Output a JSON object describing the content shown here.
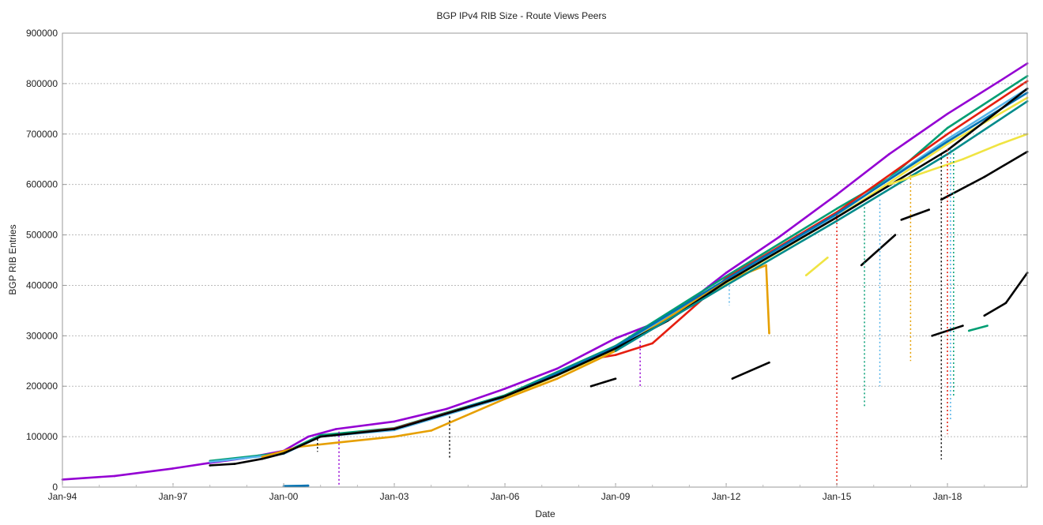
{
  "chart_data": {
    "type": "scatter",
    "title": "BGP IPv4 RIB Size - Route Views Peers",
    "xlabel": "Date",
    "ylabel": "BGP RIB Entries",
    "xlim": [
      "1994-01",
      "2020-03"
    ],
    "ylim": [
      0,
      900000
    ],
    "x_ticks": [
      "Jan-94",
      "Jan-97",
      "Jan-00",
      "Jan-03",
      "Jan-06",
      "Jan-09",
      "Jan-12",
      "Jan-15",
      "Jan-18"
    ],
    "x_tick_dates": [
      "1994-01",
      "1997-01",
      "2000-01",
      "2003-01",
      "2006-01",
      "2009-01",
      "2012-01",
      "2015-01",
      "2018-01"
    ],
    "y_ticks": [
      0,
      100000,
      200000,
      300000,
      400000,
      500000,
      600000,
      700000,
      800000,
      900000
    ],
    "grid": "horizontal dotted",
    "legend": "none",
    "series": [
      {
        "color": "#9400d3",
        "points": [
          [
            "1994-01",
            15000
          ],
          [
            "1995-06",
            22000
          ],
          [
            "1997-01",
            37000
          ],
          [
            "1998-01",
            48000
          ],
          [
            "1999-01",
            58000
          ],
          [
            "2000-01",
            72000
          ],
          [
            "2000-09",
            100000
          ],
          [
            "2001-06",
            115000
          ],
          [
            "2003-01",
            130000
          ],
          [
            "2004-06",
            155000
          ],
          [
            "2006-01",
            195000
          ],
          [
            "2007-06",
            235000
          ],
          [
            "2009-01",
            295000
          ],
          [
            "2010-06",
            335000
          ],
          [
            "2012-01",
            425000
          ],
          [
            "2013-06",
            495000
          ],
          [
            "2015-01",
            580000
          ],
          [
            "2016-06",
            660000
          ],
          [
            "2018-01",
            740000
          ],
          [
            "2019-06",
            805000
          ],
          [
            "2020-03",
            840000
          ]
        ]
      },
      {
        "color": "#009e73",
        "points": [
          [
            "1998-01",
            52000
          ],
          [
            "2000-01",
            68000
          ],
          [
            "2001-01",
            103000
          ],
          [
            "2003-01",
            117000
          ],
          [
            "2006-01",
            182000
          ],
          [
            "2009-01",
            280000
          ],
          [
            "2012-01",
            418000
          ],
          [
            "2015-01",
            552000
          ],
          [
            "2016-06",
            612000
          ],
          [
            "2018-01",
            712000
          ],
          [
            "2020-03",
            815000
          ]
        ]
      },
      {
        "color": "#e51e10",
        "points": [
          [
            "2002-01",
            108000
          ],
          [
            "2003-01",
            116000
          ],
          [
            "2006-01",
            180000
          ],
          [
            "2008-06",
            255000
          ],
          [
            "2009-01",
            262000
          ],
          [
            "2010-01",
            285000
          ],
          [
            "2012-01",
            414000
          ],
          [
            "2015-01",
            545000
          ],
          [
            "2018-01",
            700000
          ],
          [
            "2020-03",
            805000
          ]
        ]
      },
      {
        "color": "#56b4e9",
        "points": [
          [
            "1998-01",
            50000
          ],
          [
            "2000-01",
            66000
          ],
          [
            "2001-01",
            100000
          ],
          [
            "2003-01",
            113000
          ],
          [
            "2006-01",
            178000
          ],
          [
            "2009-01",
            276000
          ],
          [
            "2012-01",
            410000
          ],
          [
            "2015-01",
            540000
          ],
          [
            "2018-01",
            690000
          ],
          [
            "2020-03",
            790000
          ]
        ]
      },
      {
        "color": "#0072b2",
        "points": [
          [
            "2005-01",
            160000
          ],
          [
            "2006-01",
            179000
          ],
          [
            "2009-01",
            278000
          ],
          [
            "2012-01",
            412000
          ],
          [
            "2015-01",
            542000
          ],
          [
            "2018-01",
            685000
          ],
          [
            "2020-03",
            782000
          ]
        ]
      },
      {
        "color": "#f0e442",
        "points": [
          [
            "2006-01",
            176000
          ],
          [
            "2009-01",
            272000
          ],
          [
            "2012-01",
            405000
          ],
          [
            "2015-01",
            535000
          ],
          [
            "2018-01",
            680000
          ],
          [
            "2020-03",
            772000
          ]
        ]
      },
      {
        "color": "#e69f00",
        "points": [
          [
            "1999-06",
            60000
          ],
          [
            "2000-06",
            80000
          ],
          [
            "2001-06",
            88000
          ],
          [
            "2003-01",
            100000
          ],
          [
            "2004-01",
            112000
          ],
          [
            "2006-01",
            175000
          ],
          [
            "2007-06",
            215000
          ],
          [
            "2009-01",
            270000
          ],
          [
            "2012-01",
            408000
          ],
          [
            "2013-02",
            440000
          ]
        ]
      },
      {
        "color": "#e69f00",
        "points": [
          [
            "2013-02",
            440000
          ],
          [
            "2013-03",
            305000
          ]
        ]
      },
      {
        "color": "#000000",
        "points": [
          [
            "1998-01",
            43000
          ],
          [
            "1998-09",
            46000
          ],
          [
            "1999-06",
            56000
          ],
          [
            "2000-01",
            67000
          ],
          [
            "2001-01",
            100000
          ],
          [
            "2003-01",
            115000
          ],
          [
            "2006-01",
            180000
          ],
          [
            "2007-06",
            222000
          ],
          [
            "2009-01",
            275000
          ],
          [
            "2010-06",
            330000
          ],
          [
            "2012-01",
            407000
          ],
          [
            "2015-01",
            535000
          ],
          [
            "2018-01",
            668000
          ],
          [
            "2020-03",
            790000
          ]
        ]
      },
      {
        "color": "#008b8b",
        "points": [
          [
            "2009-01",
            270000
          ],
          [
            "2012-01",
            400000
          ],
          [
            "2015-01",
            528000
          ],
          [
            "2018-01",
            660000
          ],
          [
            "2020-03",
            765000
          ]
        ]
      },
      {
        "color": "#f0e442",
        "points": [
          [
            "2014-03",
            420000
          ],
          [
            "2014-10",
            455000
          ]
        ]
      },
      {
        "color": "#f0e442",
        "points": [
          [
            "2016-06",
            600000
          ],
          [
            "2017-06",
            625000
          ],
          [
            "2018-06",
            650000
          ],
          [
            "2019-06",
            680000
          ],
          [
            "2020-03",
            700000
          ]
        ]
      },
      {
        "color": "#000000",
        "points": [
          [
            "2012-03",
            215000
          ],
          [
            "2013-03",
            247000
          ]
        ]
      },
      {
        "color": "#000000",
        "points": [
          [
            "2015-09",
            440000
          ],
          [
            "2016-08",
            500000
          ]
        ]
      },
      {
        "color": "#000000",
        "points": [
          [
            "2016-10",
            530000
          ],
          [
            "2017-07",
            550000
          ]
        ]
      },
      {
        "color": "#000000",
        "points": [
          [
            "2017-11",
            570000
          ],
          [
            "2019-01",
            615000
          ],
          [
            "2020-03",
            665000
          ]
        ]
      },
      {
        "color": "#000000",
        "points": [
          [
            "2017-08",
            300000
          ],
          [
            "2018-06",
            320000
          ]
        ]
      },
      {
        "color": "#000000",
        "points": [
          [
            "2019-01",
            340000
          ],
          [
            "2019-08",
            365000
          ],
          [
            "2020-03",
            425000
          ]
        ]
      },
      {
        "color": "#000000",
        "points": [
          [
            "2008-05",
            200000
          ],
          [
            "2009-01",
            215000
          ]
        ]
      },
      {
        "color": "#009e73",
        "points": [
          [
            "2018-08",
            310000
          ],
          [
            "2019-02",
            320000
          ]
        ]
      },
      {
        "color": "#0072b2",
        "points": [
          [
            "2000-01",
            2000
          ],
          [
            "2000-09",
            3000
          ]
        ]
      }
    ],
    "dropouts": [
      {
        "date": "2000-12",
        "from": 95000,
        "to": 70000,
        "color": "#000000"
      },
      {
        "date": "2001-07",
        "from": 110000,
        "to": 0,
        "color": "#9400d3"
      },
      {
        "date": "2004-07",
        "from": 140000,
        "to": 55000,
        "color": "#000000"
      },
      {
        "date": "2009-09",
        "from": 290000,
        "to": 200000,
        "color": "#9400d3"
      },
      {
        "date": "2015-01",
        "from": 540000,
        "to": 0,
        "color": "#e51e10"
      },
      {
        "date": "2015-10",
        "from": 555000,
        "to": 160000,
        "color": "#009e73"
      },
      {
        "date": "2016-03",
        "from": 570000,
        "to": 200000,
        "color": "#56b4e9"
      },
      {
        "date": "2017-01",
        "from": 620000,
        "to": 250000,
        "color": "#e69f00"
      },
      {
        "date": "2017-11",
        "from": 660000,
        "to": 55000,
        "color": "#000000"
      },
      {
        "date": "2018-01",
        "from": 670000,
        "to": 105000,
        "color": "#e51e10"
      },
      {
        "date": "2018-02",
        "from": 670000,
        "to": 130000,
        "color": "#56b4e9"
      },
      {
        "date": "2018-03",
        "from": 670000,
        "to": 180000,
        "color": "#009e73"
      },
      {
        "date": "2012-02",
        "from": 400000,
        "to": 360000,
        "color": "#56b4e9"
      }
    ]
  }
}
